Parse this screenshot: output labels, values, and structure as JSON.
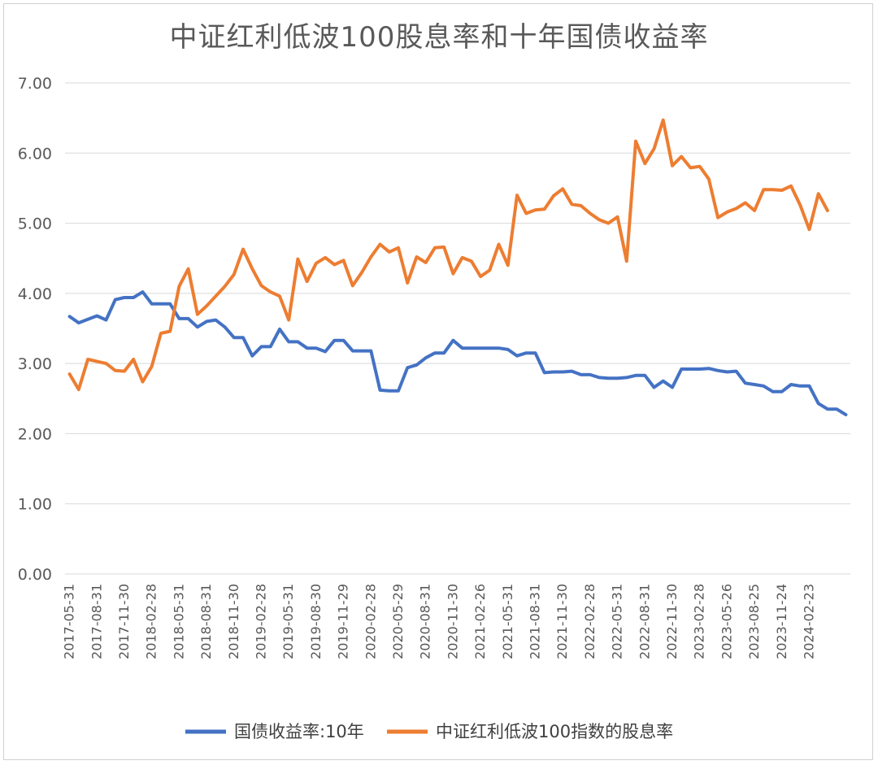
{
  "chart_data": {
    "type": "line",
    "title": "中证红利低波100股息率和十年国债收益率",
    "ylim": [
      0,
      7
    ],
    "yticks": [
      "0.00",
      "1.00",
      "2.00",
      "3.00",
      "4.00",
      "5.00",
      "6.00",
      "7.00"
    ],
    "x_tick_labels": [
      "2017-05-31",
      "2017-08-31",
      "2017-11-30",
      "2018-02-28",
      "2018-05-31",
      "2018-08-31",
      "2018-11-30",
      "2019-02-28",
      "2019-05-31",
      "2019-08-30",
      "2019-11-29",
      "2020-02-28",
      "2020-05-29",
      "2020-08-31",
      "2020-11-30",
      "2021-02-26",
      "2021-05-31",
      "2021-08-31",
      "2021-11-30",
      "2022-02-28",
      "2022-05-31",
      "2022-08-31",
      "2022-11-30",
      "2023-02-28",
      "2023-05-26",
      "2023-08-25",
      "2023-11-24",
      "2024-02-23"
    ],
    "grid": true,
    "legend_position": "bottom",
    "series": [
      {
        "name": "国债收益率:10年",
        "color": "#4472C4",
        "values": [
          3.67,
          3.58,
          3.63,
          3.68,
          3.62,
          3.91,
          3.94,
          3.94,
          4.02,
          3.85,
          3.85,
          3.85,
          3.64,
          3.64,
          3.52,
          3.6,
          3.62,
          3.52,
          3.37,
          3.37,
          3.11,
          3.24,
          3.24,
          3.49,
          3.31,
          3.31,
          3.22,
          3.22,
          3.17,
          3.33,
          3.33,
          3.18,
          3.18,
          3.18,
          2.62,
          2.61,
          2.61,
          2.94,
          2.98,
          3.08,
          3.15,
          3.15,
          3.33,
          3.22,
          3.22,
          3.22,
          3.22,
          3.22,
          3.2,
          3.11,
          3.15,
          3.15,
          2.87,
          2.88,
          2.88,
          2.89,
          2.84,
          2.84,
          2.8,
          2.79,
          2.79,
          2.8,
          2.83,
          2.83,
          2.66,
          2.75,
          2.66,
          2.92,
          2.92,
          2.92,
          2.93,
          2.9,
          2.88,
          2.89,
          2.72,
          2.7,
          2.68,
          2.6,
          2.6,
          2.7,
          2.68,
          2.68,
          2.43,
          2.35,
          2.35,
          2.27
        ]
      },
      {
        "name": "中证红利低波100指数的股息率",
        "color": "#ED7D31",
        "values": [
          2.85,
          2.63,
          3.06,
          3.03,
          3.0,
          2.9,
          2.89,
          3.06,
          2.74,
          2.96,
          3.43,
          3.46,
          4.1,
          4.35,
          3.7,
          3.82,
          3.96,
          4.1,
          4.27,
          4.63,
          4.35,
          4.11,
          4.02,
          3.96,
          3.62,
          4.49,
          4.17,
          4.43,
          4.51,
          4.41,
          4.47,
          4.11,
          4.3,
          4.52,
          4.7,
          4.59,
          4.65,
          4.15,
          4.52,
          4.44,
          4.65,
          4.66,
          4.28,
          4.51,
          4.46,
          4.24,
          4.33,
          4.7,
          4.4,
          5.4,
          5.14,
          5.19,
          5.2,
          5.39,
          5.49,
          5.27,
          5.25,
          5.14,
          5.05,
          5.0,
          5.09,
          4.46,
          6.17,
          5.85,
          6.06,
          6.47,
          5.82,
          5.95,
          5.79,
          5.81,
          5.63,
          5.08,
          5.16,
          5.21,
          5.29,
          5.18,
          5.48,
          5.48,
          5.47,
          5.53,
          5.26,
          4.91,
          5.42,
          5.18
        ]
      }
    ]
  }
}
